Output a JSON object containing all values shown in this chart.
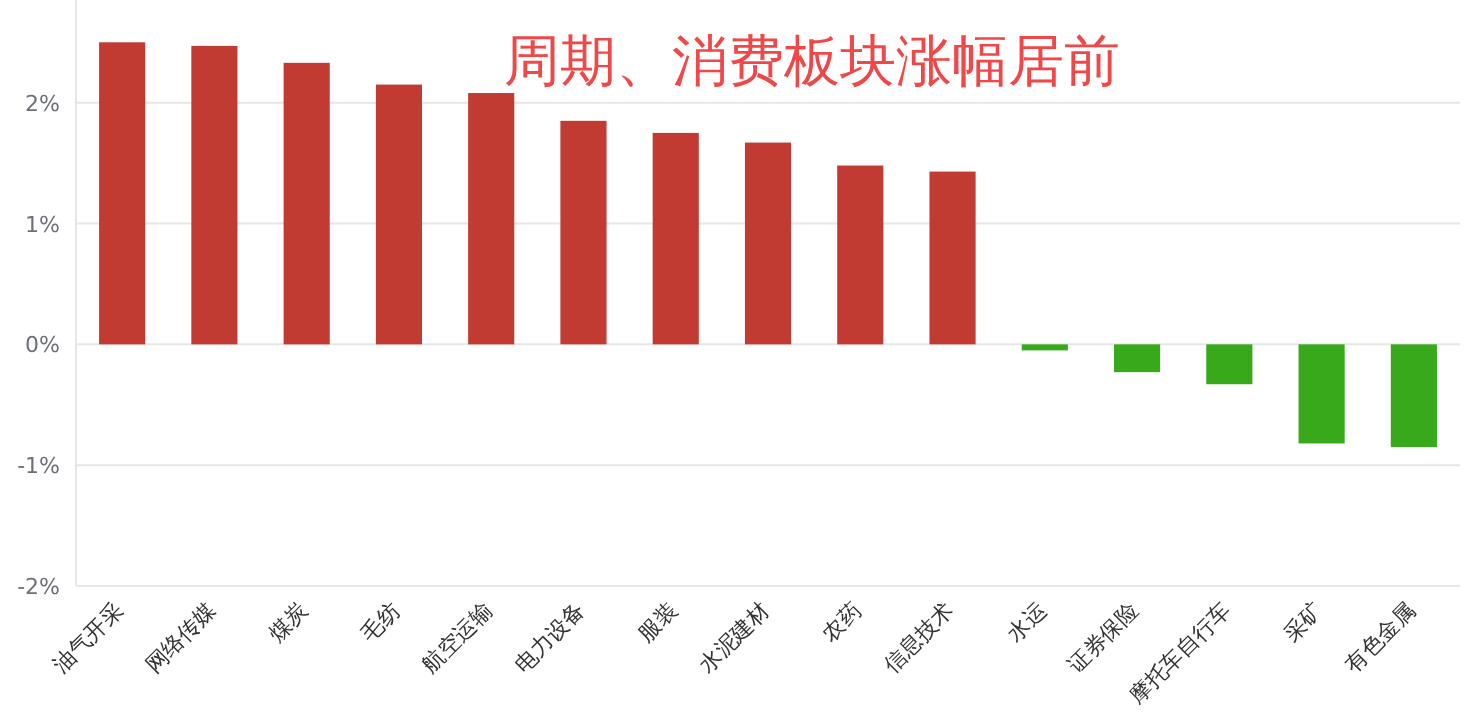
{
  "chart_data": {
    "type": "bar",
    "title": "周期、消费板块涨幅居前",
    "categories": [
      "油气开采",
      "网络传媒",
      "煤炭",
      "毛纺",
      "航空运输",
      "电力设备",
      "服装",
      "水泥建材",
      "农药",
      "信息技术",
      "水运",
      "证券保险",
      "摩托车自行车",
      "采矿",
      "有色金属"
    ],
    "values": [
      2.5,
      2.47,
      2.33,
      2.15,
      2.08,
      1.85,
      1.75,
      1.67,
      1.48,
      1.43,
      -0.05,
      -0.23,
      -0.33,
      -0.82,
      -0.85
    ],
    "colors": [
      "#c23b33",
      "#c23b33",
      "#c23b33",
      "#c23b33",
      "#c23b33",
      "#c23b33",
      "#c23b33",
      "#c23b33",
      "#c23b33",
      "#c23b33",
      "#37a91b",
      "#37a91b",
      "#37a91b",
      "#37a91b",
      "#37a91b"
    ],
    "ylim": [
      -2,
      2.85
    ],
    "yticks": [
      {
        "value": -2,
        "label": "-2%"
      },
      {
        "value": -1,
        "label": "-1%"
      },
      {
        "value": 0,
        "label": "0%"
      },
      {
        "value": 1,
        "label": "1%"
      },
      {
        "value": 2,
        "label": "2%"
      }
    ],
    "grid": "y"
  }
}
